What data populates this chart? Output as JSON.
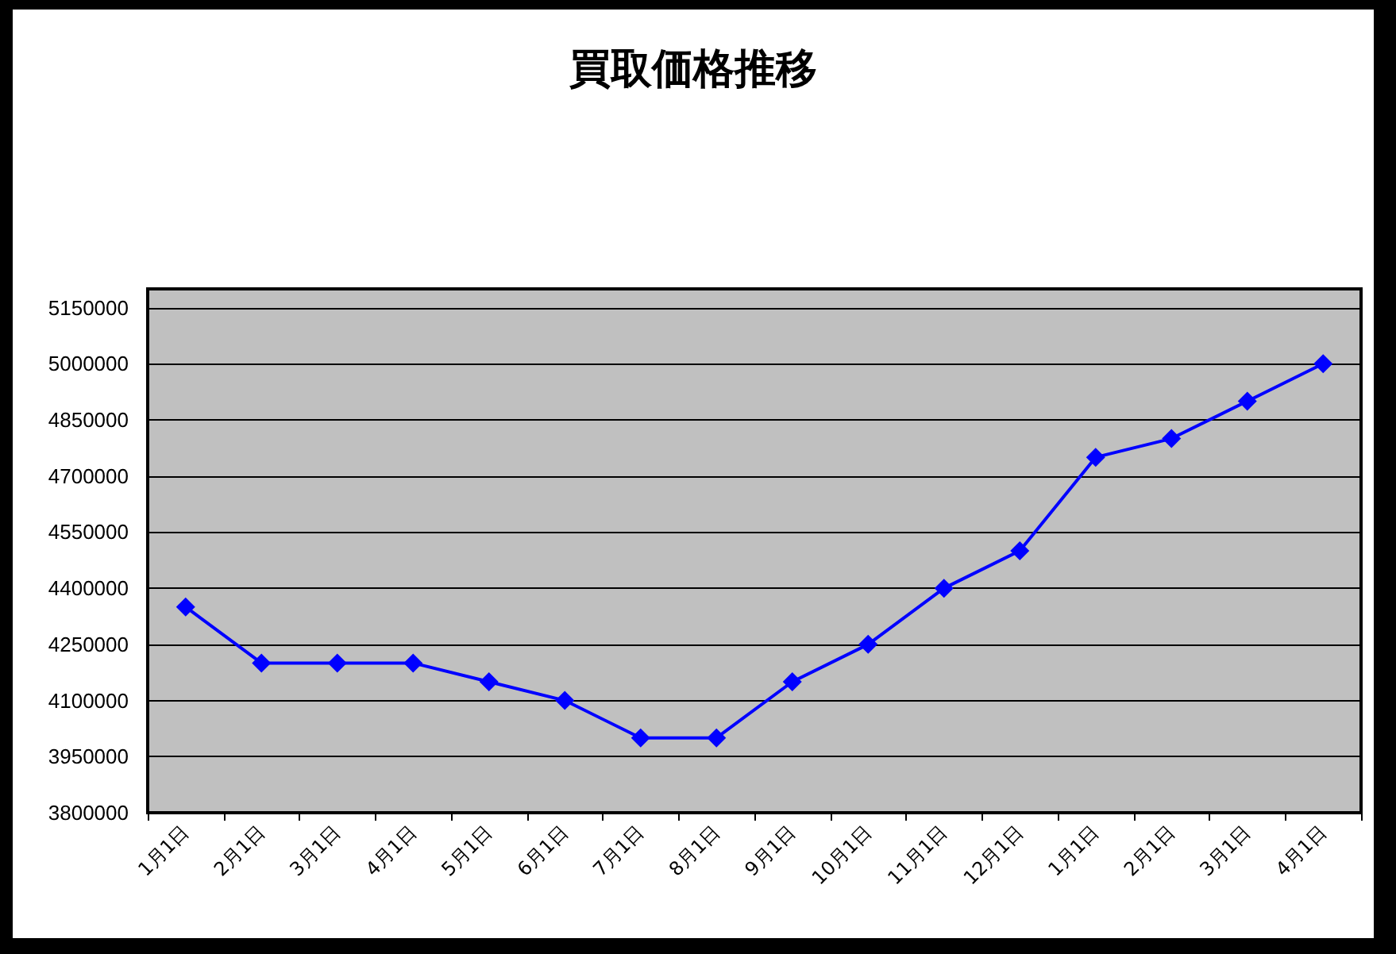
{
  "chart_data": {
    "type": "line",
    "title": "買取価格推移",
    "categories": [
      "1月1日",
      "2月1日",
      "3月1日",
      "4月1日",
      "5月1日",
      "6月1日",
      "7月1日",
      "8月1日",
      "9月1日",
      "10月1日",
      "11月1日",
      "12月1日",
      "1月1日",
      "2月1日",
      "3月1日",
      "4月1日"
    ],
    "values": [
      4350000,
      4200000,
      4200000,
      4200000,
      4150000,
      4100000,
      4000000,
      4000000,
      4150000,
      4250000,
      4400000,
      4500000,
      4750000,
      4800000,
      4900000,
      5000000
    ],
    "color": "#0000ff",
    "ylim": [
      3800000,
      5200000
    ],
    "yticks": [
      3800000,
      3950000,
      4100000,
      4250000,
      4400000,
      4550000,
      4700000,
      4850000,
      5000000,
      5150000
    ],
    "grid": "y",
    "marker": "diamond"
  }
}
